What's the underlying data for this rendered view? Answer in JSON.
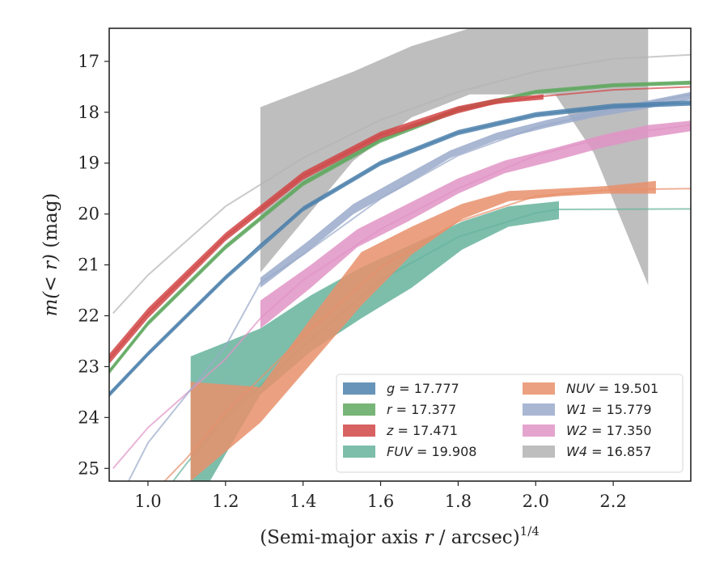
{
  "chart_data": {
    "type": "area",
    "xlabel_main": "(Semi-major axis ",
    "xlabel_var": "r",
    "xlabel_tail": " / arcsec)",
    "xlabel_exp": "1/4",
    "ylabel_main": "m(< r)",
    "ylabel_unit": " (mag)",
    "xlim": [
      0.9,
      2.4
    ],
    "ylim": [
      25.25,
      16.35
    ],
    "y_inverted": true,
    "xticks": [
      1.0,
      1.2,
      1.4,
      1.6,
      1.8,
      2.0,
      2.2
    ],
    "xtick_labels": [
      "1.0",
      "1.2",
      "1.4",
      "1.6",
      "1.8",
      "2.0",
      "2.2"
    ],
    "yticks": [
      17,
      18,
      19,
      20,
      21,
      22,
      23,
      24,
      25
    ],
    "ytick_labels": [
      "17",
      "18",
      "19",
      "20",
      "21",
      "22",
      "23",
      "24",
      "25"
    ],
    "legend_position": "lower-right",
    "series": [
      {
        "name": "W4",
        "label_var": "W4",
        "label_value": " = 16.857",
        "color": "#b3b3b3",
        "model": [
          [
            0.91,
            21.95
          ],
          [
            1.0,
            21.2
          ],
          [
            1.2,
            19.85
          ],
          [
            1.4,
            18.9
          ],
          [
            1.6,
            18.15
          ],
          [
            1.8,
            17.6
          ],
          [
            2.0,
            17.2
          ],
          [
            2.2,
            16.95
          ],
          [
            2.4,
            16.87
          ]
        ],
        "band_x": [
          1.29,
          1.53,
          1.68,
          1.83,
          1.98,
          2.05,
          2.15,
          2.29
        ],
        "band_upper": [
          17.9,
          17.2,
          16.7,
          16.35,
          16.35,
          16.35,
          16.35,
          16.35
        ],
        "band_lower": [
          21.15,
          18.95,
          18.1,
          17.65,
          17.65,
          17.65,
          18.8,
          21.4
        ]
      },
      {
        "name": "FUV",
        "label_var": "FUV",
        "label_value": " = 19.908",
        "color": "#66b39c",
        "model": [
          [
            1.0,
            25.9
          ],
          [
            1.1,
            24.9
          ],
          [
            1.2,
            24.0
          ],
          [
            1.4,
            22.6
          ],
          [
            1.6,
            21.3
          ],
          [
            1.8,
            20.45
          ],
          [
            2.0,
            19.98
          ],
          [
            2.06,
            19.91
          ],
          [
            2.4,
            19.9
          ]
        ],
        "band_x": [
          1.11,
          1.29,
          1.42,
          1.55,
          1.68,
          1.81,
          1.93,
          2.06
        ],
        "band_upper": [
          22.8,
          22.25,
          21.6,
          21.05,
          20.6,
          20.15,
          19.85,
          19.75
        ],
        "band_lower": [
          25.9,
          23.55,
          22.7,
          22.05,
          21.45,
          20.7,
          20.25,
          20.1
        ]
      },
      {
        "name": "NUV",
        "label_var": "NUV",
        "label_value": " = 19.501",
        "color": "#e8906b",
        "model": [
          [
            0.96,
            25.9
          ],
          [
            1.1,
            24.8
          ],
          [
            1.2,
            23.9
          ],
          [
            1.4,
            22.4
          ],
          [
            1.6,
            21.05
          ],
          [
            1.8,
            20.15
          ],
          [
            2.0,
            19.65
          ],
          [
            2.2,
            19.52
          ],
          [
            2.4,
            19.5
          ]
        ],
        "band_x": [
          1.11,
          1.29,
          1.42,
          1.55,
          1.68,
          1.81,
          1.93,
          2.06,
          2.18,
          2.31
        ],
        "band_upper": [
          23.3,
          23.4,
          22.05,
          20.75,
          20.25,
          19.8,
          19.55,
          19.5,
          19.45,
          19.35
        ],
        "band_lower": [
          25.25,
          24.1,
          22.95,
          21.8,
          20.8,
          20.1,
          19.75,
          19.65,
          19.6,
          19.6
        ]
      },
      {
        "name": "W2",
        "label_var": "W2",
        "label_value": " = 17.350",
        "color": "#e194c6",
        "model": [
          [
            0.91,
            25.0
          ],
          [
            1.0,
            24.2
          ],
          [
            1.2,
            22.85
          ],
          [
            1.29,
            22.05
          ],
          [
            1.4,
            21.3
          ],
          [
            1.6,
            20.3
          ],
          [
            1.8,
            19.5
          ],
          [
            2.0,
            18.85
          ],
          [
            2.2,
            18.45
          ],
          [
            2.4,
            18.25
          ]
        ],
        "band_x": [
          1.29,
          1.42,
          1.54,
          1.67,
          1.8,
          1.92,
          2.05,
          2.17,
          2.29,
          2.42
        ],
        "band_upper": [
          21.7,
          21.0,
          20.3,
          19.8,
          19.3,
          18.95,
          18.7,
          18.45,
          18.25,
          18.15
        ],
        "band_lower": [
          22.25,
          21.45,
          20.65,
          20.15,
          19.6,
          19.2,
          18.95,
          18.7,
          18.5,
          18.35
        ]
      },
      {
        "name": "W1",
        "label_var": "W1",
        "label_value": " = 15.779",
        "color": "#9aaacb",
        "model": [
          [
            0.94,
            25.4
          ],
          [
            1.0,
            24.5
          ],
          [
            1.2,
            22.6
          ],
          [
            1.29,
            21.35
          ],
          [
            1.4,
            20.8
          ],
          [
            1.6,
            19.7
          ],
          [
            1.8,
            18.85
          ],
          [
            2.0,
            18.3
          ],
          [
            2.2,
            17.95
          ],
          [
            2.4,
            17.65
          ]
        ],
        "band_x": [
          1.29,
          1.41,
          1.53,
          1.66,
          1.78,
          1.9,
          2.03,
          2.15,
          2.27,
          2.4
        ],
        "band_upper": [
          21.25,
          20.55,
          19.8,
          19.25,
          18.75,
          18.4,
          18.15,
          17.95,
          17.8,
          17.6
        ],
        "band_lower": [
          21.45,
          20.75,
          20.0,
          19.45,
          18.9,
          18.55,
          18.3,
          18.1,
          17.95,
          17.75
        ]
      },
      {
        "name": "g",
        "label_var": "g",
        "label_value": " = 17.777",
        "color": "#4e81ad",
        "model": [
          [
            0.9,
            23.55
          ],
          [
            1.0,
            22.75
          ],
          [
            1.2,
            21.25
          ],
          [
            1.29,
            20.6
          ],
          [
            1.4,
            19.9
          ],
          [
            1.6,
            19.0
          ],
          [
            1.8,
            18.4
          ],
          [
            2.0,
            18.05
          ],
          [
            2.2,
            17.88
          ],
          [
            2.4,
            17.82
          ]
        ],
        "band_x": [
          0.9,
          1.0,
          1.2,
          1.4,
          1.6,
          1.8,
          2.0,
          2.2,
          2.4
        ],
        "band_upper": [
          23.5,
          22.7,
          21.2,
          19.85,
          18.95,
          18.35,
          18.0,
          17.83,
          17.77
        ],
        "band_lower": [
          23.6,
          22.8,
          21.3,
          19.95,
          19.05,
          18.45,
          18.1,
          17.93,
          17.87
        ]
      },
      {
        "name": "r",
        "label_var": "r",
        "label_value": " = 17.377",
        "color": "#60a860",
        "model": [
          [
            0.9,
            23.1
          ],
          [
            1.0,
            22.15
          ],
          [
            1.2,
            20.65
          ],
          [
            1.4,
            19.4
          ],
          [
            1.6,
            18.55
          ],
          [
            1.8,
            17.95
          ],
          [
            2.0,
            17.6
          ],
          [
            2.2,
            17.47
          ],
          [
            2.4,
            17.42
          ]
        ],
        "band_x": [
          0.9,
          1.0,
          1.2,
          1.4,
          1.6,
          1.8,
          2.0,
          2.2,
          2.4
        ],
        "band_upper": [
          23.05,
          22.1,
          20.6,
          19.35,
          18.5,
          17.9,
          17.56,
          17.43,
          17.38
        ],
        "band_lower": [
          23.15,
          22.2,
          20.7,
          19.45,
          18.6,
          18.0,
          17.64,
          17.51,
          17.46
        ]
      },
      {
        "name": "z",
        "label_var": "z",
        "label_value": " = 17.471",
        "color": "#d14646",
        "model": [
          [
            0.9,
            22.85
          ],
          [
            1.0,
            21.95
          ],
          [
            1.2,
            20.45
          ],
          [
            1.4,
            19.25
          ],
          [
            1.6,
            18.45
          ],
          [
            1.8,
            17.95
          ],
          [
            2.0,
            17.7
          ],
          [
            2.2,
            17.56
          ],
          [
            2.4,
            17.5
          ]
        ],
        "band_x": [
          0.9,
          1.0,
          1.2,
          1.4,
          1.6,
          1.8,
          1.9,
          2.02
        ],
        "band_upper": [
          22.75,
          21.85,
          20.37,
          19.17,
          18.38,
          17.88,
          17.73,
          17.65
        ],
        "band_lower": [
          22.95,
          22.05,
          20.53,
          19.33,
          18.52,
          18.02,
          17.83,
          17.75
        ]
      }
    ],
    "legend_order": [
      "g",
      "r",
      "z",
      "FUV",
      "NUV",
      "W1",
      "W2",
      "W4"
    ]
  }
}
